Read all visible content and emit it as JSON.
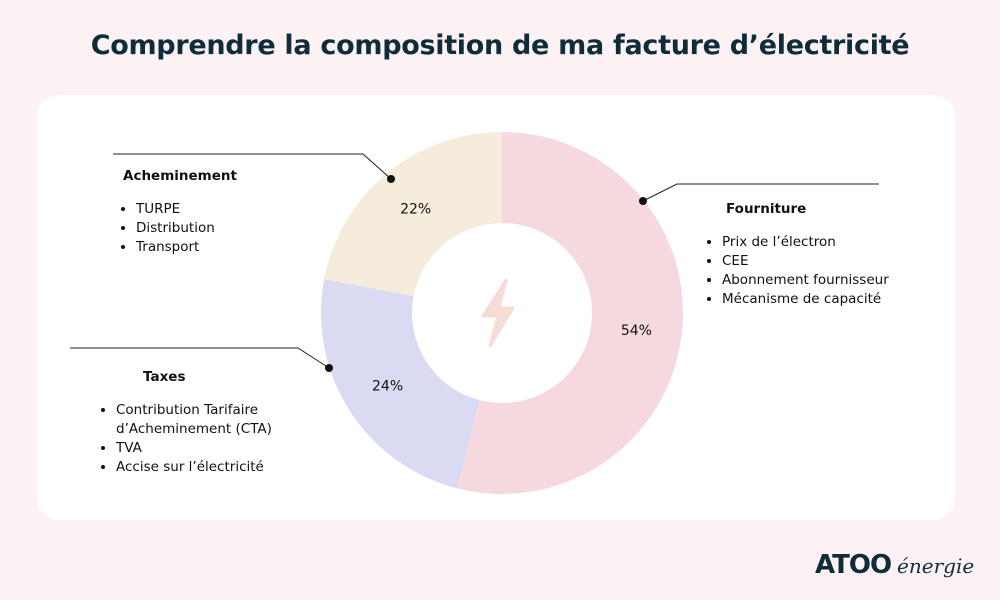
{
  "title": "Comprendre la composition de ma facture d’électricité",
  "chart_data": {
    "type": "pie",
    "variant": "donut",
    "categories": [
      "Fourniture",
      "Taxes",
      "Acheminement"
    ],
    "values": [
      54,
      24,
      22
    ],
    "labels": [
      "54%",
      "24%",
      "22%"
    ],
    "colors": [
      "#f5d9df",
      "#dadbf3",
      "#f5ecdb"
    ],
    "center_icon": "lightning-bolt-icon"
  },
  "legend": [
    {
      "title": "Fourniture",
      "items": [
        "Prix de l’électron",
        "CEE",
        "Abonnement fournisseur",
        "Mécanisme de capacité"
      ]
    },
    {
      "title": "Taxes",
      "items": [
        "Contribution Tarifaire d’Acheminement (CTA)",
        "TVA",
        "Accise sur l’électricité"
      ]
    },
    {
      "title": "Acheminement",
      "items": [
        "TURPE",
        "Distribution",
        "Transport"
      ]
    }
  ],
  "logo": {
    "brand": "ATOO",
    "suffix": "énergie"
  }
}
